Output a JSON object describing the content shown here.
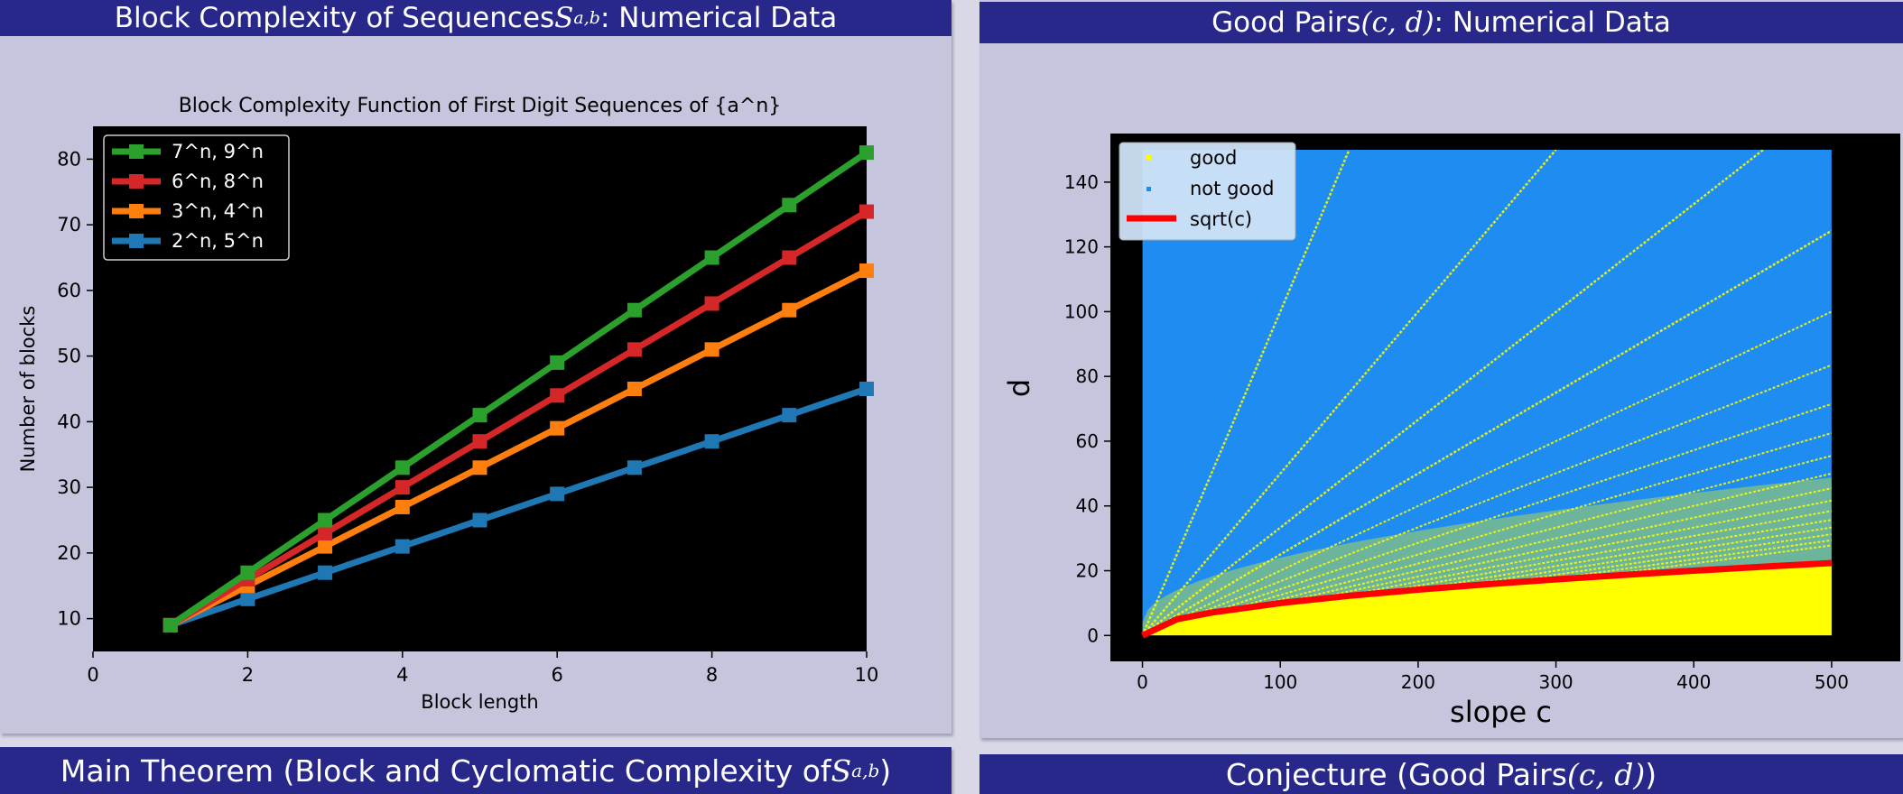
{
  "panels": {
    "left_title": {
      "before": "Block Complexity of Sequences ",
      "math": "S",
      "sub": "a,b",
      "after": ": Numerical Data"
    },
    "right_title": {
      "before": "Good Pairs ",
      "math": "(c, d)",
      "after": ": Numerical Data"
    },
    "bottom_left_title": {
      "before": "Main Theorem (Block and Cyclomatic Complexity of ",
      "math": "S",
      "sub": "a,b",
      "after": ")"
    },
    "bottom_right_title": {
      "before": "Conjecture (Good Pairs ",
      "math": "(c, d)",
      "after": ")"
    }
  },
  "chart_data": [
    {
      "type": "line",
      "title": "Block Complexity Function of First Digit Sequences of {a^n}",
      "xlabel": "Block length",
      "ylabel": "Number of blocks",
      "xlim": [
        0,
        10
      ],
      "ylim": [
        5,
        85
      ],
      "xticks": [
        "0",
        "2",
        "4",
        "6",
        "8",
        "10"
      ],
      "yticks": [
        "10",
        "20",
        "30",
        "40",
        "50",
        "60",
        "70",
        "80"
      ],
      "background": "#000000",
      "grid": false,
      "legend_position": "top-left",
      "x": [
        1,
        2,
        3,
        4,
        5,
        6,
        7,
        8,
        9,
        10
      ],
      "series": [
        {
          "name": "7^n, 9^n",
          "color": "#2ca02c",
          "values": [
            9,
            17,
            25,
            33,
            41,
            49,
            57,
            65,
            73,
            81
          ]
        },
        {
          "name": "6^n, 8^n",
          "color": "#d62728",
          "values": [
            9,
            16,
            23,
            30,
            37,
            44,
            51,
            58,
            65,
            72
          ]
        },
        {
          "name": "3^n, 4^n",
          "color": "#ff7f0e",
          "values": [
            9,
            15,
            21,
            27,
            33,
            39,
            45,
            51,
            57,
            63
          ]
        },
        {
          "name": "2^n, 5^n",
          "color": "#1f77b4",
          "values": [
            9,
            13,
            17,
            21,
            25,
            29,
            33,
            37,
            41,
            45
          ]
        }
      ]
    },
    {
      "type": "scatter",
      "xlabel": "slope c",
      "ylabel": "d",
      "xlim": [
        -20,
        540
      ],
      "ylim": [
        -8,
        155
      ],
      "xticks": [
        "0",
        "100",
        "200",
        "300",
        "400",
        "500"
      ],
      "yticks": [
        "0",
        "20",
        "40",
        "60",
        "80",
        "100",
        "120",
        "140"
      ],
      "c_range": [
        0,
        500
      ],
      "d_range": [
        0,
        150
      ],
      "legend_position": "top-left",
      "series": [
        {
          "name": "good",
          "color": "#ffff00"
        },
        {
          "name": "not good",
          "color": "#1e8cf0"
        },
        {
          "name": "sqrt(c)",
          "color": "#ff0000",
          "curve": "sqrt",
          "x": [
            0,
            25,
            50,
            100,
            150,
            200,
            250,
            300,
            350,
            400,
            450,
            500
          ],
          "values": [
            0,
            5,
            7.07,
            10,
            12.25,
            14.14,
            15.81,
            17.32,
            18.71,
            20,
            21.21,
            22.36
          ]
        }
      ],
      "good_ray_slopes": [
        1,
        0.5,
        0.333,
        0.25,
        0.2,
        0.167,
        0.143,
        0.125,
        0.111,
        0.1,
        0.0909,
        0.0833,
        0.0769,
        0.0714,
        0.0667,
        0.0625,
        0.0588,
        0.0556
      ]
    }
  ]
}
